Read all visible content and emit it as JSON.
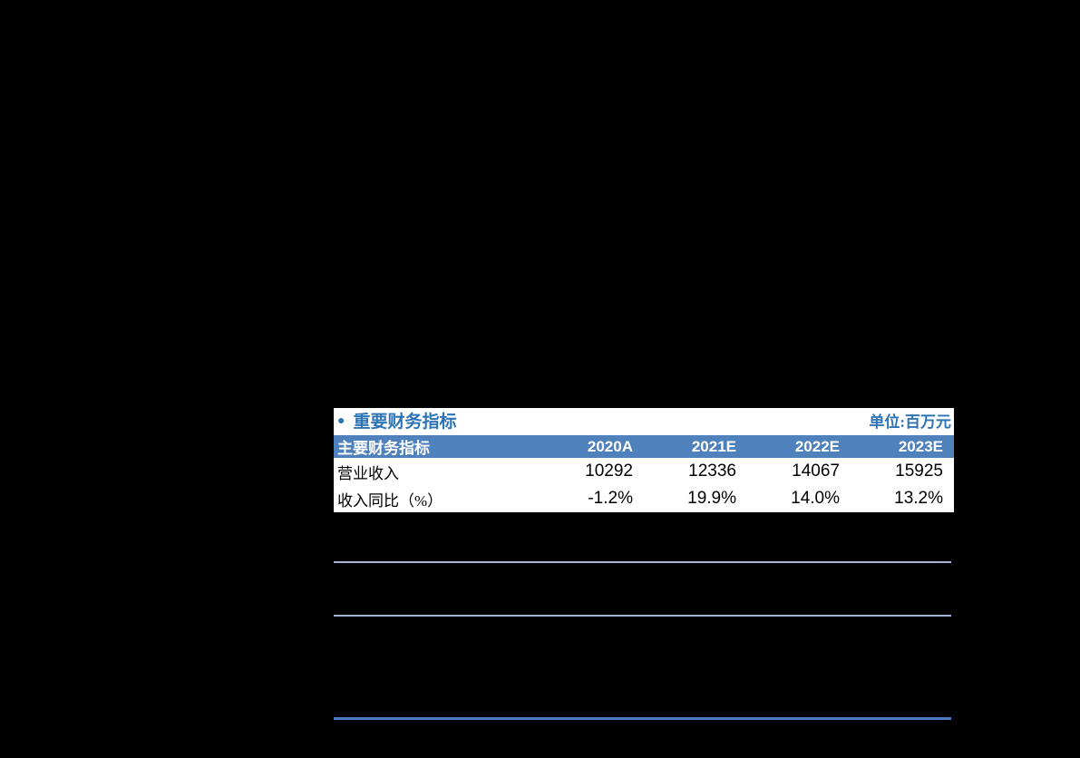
{
  "panel": {
    "bullet": "●",
    "title": "重要财务指标",
    "unit": "单位:百万元"
  },
  "table": {
    "header": [
      "主要财务指标",
      "2020A",
      "2021E",
      "2022E",
      "2023E"
    ],
    "rows": [
      {
        "label": "营业收入",
        "values": [
          "10292",
          "12336",
          "14067",
          "15925"
        ]
      },
      {
        "label": "收入同比（%）",
        "values": [
          "-1.2%",
          "19.9%",
          "14.0%",
          "13.2%"
        ]
      }
    ]
  },
  "colors": {
    "page_bg": "#000000",
    "panel_bg": "#FFFFFF",
    "header_bg": "#4F81BD",
    "accent_blue": "#2E74B5",
    "divider_light": "#A3B5D6",
    "divider_dark": "#4C7CC0"
  }
}
